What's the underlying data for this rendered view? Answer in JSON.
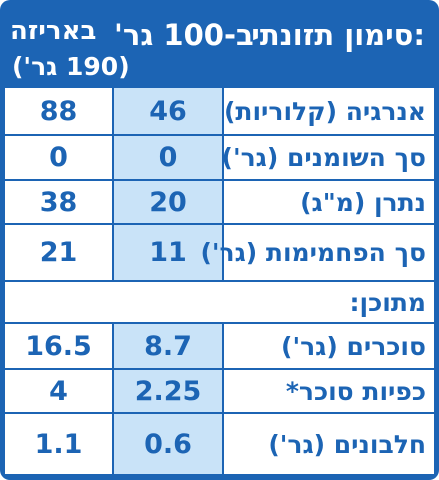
{
  "header": {
    "title": "סימון תזונתי:",
    "per_100": "ב-100 גר'",
    "per_package": "באריזה",
    "package_weight": "(190 גר')"
  },
  "rows": [
    {
      "label": "אנרגיה (קלוריות)",
      "per_100": "46",
      "per_package": "88"
    },
    {
      "label": "סך השומנים (גר')",
      "per_100": "0",
      "per_package": "0"
    },
    {
      "label": "נתרן (מ\"ג)",
      "per_100": "20",
      "per_package": "38"
    },
    {
      "label": "סך הפחמימות (גר')",
      "per_100": "11",
      "per_package": "21"
    }
  ],
  "section_label": "מתוכן:",
  "sub_rows": [
    {
      "label": "סוכרים (גר')",
      "per_100": "8.7",
      "per_package": "16.5"
    },
    {
      "label": "כפיות סוכר*",
      "per_100": "2.25",
      "per_package": "4"
    },
    {
      "label": "חלבונים (גר')",
      "per_100": "0.6",
      "per_package": "1.1"
    }
  ],
  "colors": {
    "brand_blue": "#1c64b4",
    "light_blue": "#c9e3f8",
    "white": "#ffffff"
  }
}
